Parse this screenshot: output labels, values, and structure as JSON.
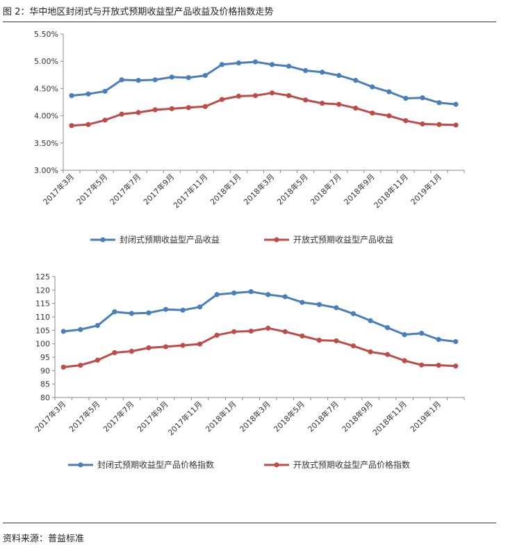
{
  "figure": {
    "title": "图 2：华中地区封闭式与开放式预期收益型产品收益及价格指数走势",
    "source": "资料来源：普益标准"
  },
  "chart_data": [
    {
      "type": "line",
      "title": "",
      "categories": [
        "2017年3月",
        "2017年4月",
        "2017年5月",
        "2017年6月",
        "2017年7月",
        "2017年8月",
        "2017年9月",
        "2017年10月",
        "2017年11月",
        "2017年12月",
        "2018年1月",
        "2018年2月",
        "2018年3月",
        "2018年4月",
        "2018年5月",
        "2018年6月",
        "2018年7月",
        "2018年8月",
        "2018年9月",
        "2018年10月",
        "2018年11月",
        "2018年12月",
        "2019年1月",
        "2019年2月"
      ],
      "tick_labels": [
        "2017年3月",
        "2017年5月",
        "2017年7月",
        "2017年9月",
        "2017年11月",
        "2018年1月",
        "2018年3月",
        "2018年5月",
        "2018年7月",
        "2018年9月",
        "2018年11月",
        "2019年1月"
      ],
      "ylim": [
        3.0,
        5.5
      ],
      "yticks": [
        "3.00%",
        "3.50%",
        "4.00%",
        "4.50%",
        "5.00%",
        "5.50%"
      ],
      "series": [
        {
          "name": "封闭式预期收益型产品收益",
          "color": "#4a7ebb",
          "values": [
            4.37,
            4.4,
            4.45,
            4.66,
            4.65,
            4.66,
            4.71,
            4.7,
            4.74,
            4.94,
            4.97,
            4.99,
            4.94,
            4.91,
            4.83,
            4.8,
            4.74,
            4.65,
            4.53,
            4.44,
            4.32,
            4.33,
            4.24,
            4.21
          ]
        },
        {
          "name": "开放式预期收益型产品收益",
          "color": "#be4b48",
          "values": [
            3.82,
            3.84,
            3.92,
            4.03,
            4.06,
            4.11,
            4.13,
            4.15,
            4.17,
            4.3,
            4.36,
            4.37,
            4.42,
            4.37,
            4.29,
            4.23,
            4.21,
            4.14,
            4.05,
            4.0,
            3.91,
            3.85,
            3.84,
            3.83
          ]
        }
      ]
    },
    {
      "type": "line",
      "title": "",
      "categories": [
        "2017年3月",
        "2017年4月",
        "2017年5月",
        "2017年6月",
        "2017年7月",
        "2017年8月",
        "2017年9月",
        "2017年10月",
        "2017年11月",
        "2017年12月",
        "2018年1月",
        "2018年2月",
        "2018年3月",
        "2018年4月",
        "2018年5月",
        "2018年6月",
        "2018年7月",
        "2018年8月",
        "2018年9月",
        "2018年10月",
        "2018年11月",
        "2018年12月",
        "2019年1月",
        "2019年2月"
      ],
      "tick_labels": [
        "2017年3月",
        "2017年5月",
        "2017年7月",
        "2017年9月",
        "2017年11月",
        "2018年1月",
        "2018年3月",
        "2018年5月",
        "2018年7月",
        "2018年9月",
        "2018年11月",
        "2019年1月"
      ],
      "ylim": [
        80,
        125
      ],
      "yticks": [
        "80",
        "85",
        "90",
        "95",
        "100",
        "105",
        "110",
        "115",
        "120",
        "125"
      ],
      "series": [
        {
          "name": "封闭式预期收益型产品价格指数",
          "color": "#4a7ebb",
          "values": [
            104.6,
            105.3,
            106.8,
            111.9,
            111.3,
            111.5,
            112.8,
            112.5,
            113.7,
            118.3,
            118.9,
            119.4,
            118.3,
            117.5,
            115.4,
            114.6,
            113.4,
            111.2,
            108.6,
            106.0,
            103.4,
            103.9,
            101.6,
            100.8
          ]
        },
        {
          "name": "开放式预期收益型产品价格指数",
          "color": "#be4b48",
          "values": [
            91.3,
            92.0,
            93.9,
            96.7,
            97.2,
            98.5,
            98.9,
            99.4,
            99.9,
            103.2,
            104.5,
            104.7,
            105.8,
            104.5,
            102.9,
            101.3,
            101.1,
            99.2,
            97.0,
            96.0,
            93.7,
            92.1,
            92.0,
            91.7
          ]
        }
      ]
    }
  ]
}
